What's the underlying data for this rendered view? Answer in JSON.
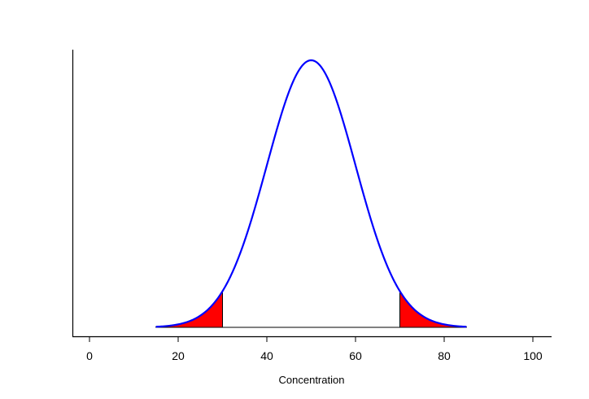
{
  "chart_data": {
    "type": "line",
    "title": "",
    "xlabel": "Concentration",
    "ylabel": "",
    "xlim": [
      -4,
      104
    ],
    "x_ticks": [
      0,
      20,
      40,
      60,
      80,
      100
    ],
    "x_tick_labels": [
      "0",
      "20",
      "40",
      "60",
      "80",
      "100"
    ],
    "y_axis_ticks_shown": false,
    "grid": false,
    "curve": {
      "distribution": "normal",
      "mean": 50,
      "sd": 10,
      "x_range": [
        15,
        85
      ],
      "color": "#0000ff"
    },
    "shaded_regions": [
      {
        "from": 15,
        "to": 30,
        "color": "#ff0000"
      },
      {
        "from": 70,
        "to": 85,
        "color": "#ff0000"
      }
    ]
  }
}
